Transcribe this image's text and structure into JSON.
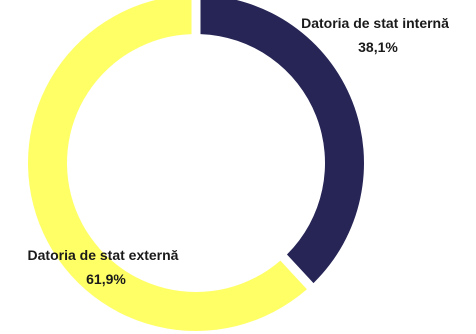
{
  "chart_data": {
    "type": "pie",
    "variant": "donut",
    "title": "",
    "slices": [
      {
        "name": "Datoria de stat internă",
        "value": 38.1,
        "value_label": "38,1%",
        "color": "#262556"
      },
      {
        "name": "Datoria de stat externă",
        "value": 61.9,
        "value_label": "61,9%",
        "color": "#ffff66"
      }
    ],
    "slice_separator": "white gaps between slices",
    "start_angle": "12 o'clock, clockwise",
    "legend": "none (labels next to slices)"
  }
}
